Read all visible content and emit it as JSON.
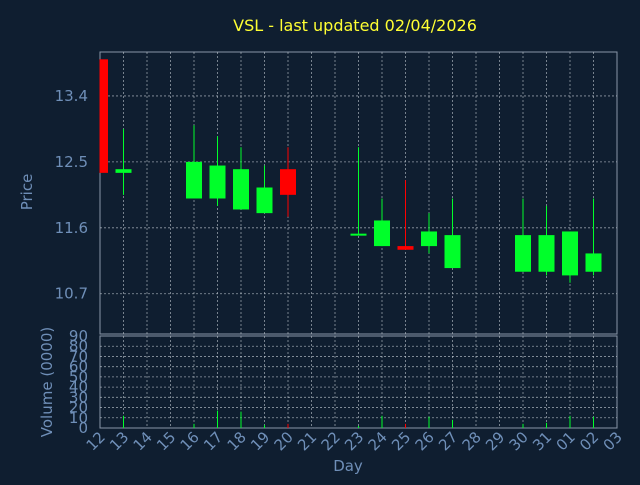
{
  "chart_data": {
    "type": "candlestick",
    "title": "VSL - last updated 02/04/2026",
    "xlabel": "Day",
    "price_panel": {
      "ylabel": "Price",
      "ylim": [
        10.15,
        14.0
      ],
      "y_ticks": [
        10.7,
        11.6,
        12.5,
        13.4
      ]
    },
    "volume_panel": {
      "ylabel": "Volume (0000)",
      "ylim": [
        0,
        90
      ],
      "y_ticks": [
        0,
        10,
        20,
        30,
        40,
        50,
        60,
        70,
        80,
        90
      ]
    },
    "x_tick_labels": [
      "12",
      "13",
      "14",
      "15",
      "16",
      "17",
      "18",
      "19",
      "20",
      "21",
      "22",
      "23",
      "24",
      "25",
      "26",
      "27",
      "28",
      "29",
      "30",
      "31",
      "01",
      "02",
      "03"
    ],
    "candles": [
      {
        "day": "12",
        "open": 13.9,
        "close": 12.35,
        "high": 13.9,
        "low": 12.35,
        "volume": 0
      },
      {
        "day": "13",
        "open": 12.35,
        "close": 12.4,
        "high": 12.95,
        "low": 12.05,
        "volume": 12
      },
      {
        "day": "16",
        "open": 12.0,
        "close": 12.5,
        "high": 13.0,
        "low": 12.0,
        "volume": 4
      },
      {
        "day": "17",
        "open": 12.0,
        "close": 12.45,
        "high": 12.85,
        "low": 11.9,
        "volume": 17
      },
      {
        "day": "18",
        "open": 11.85,
        "close": 12.4,
        "high": 12.7,
        "low": 11.85,
        "volume": 16
      },
      {
        "day": "19",
        "open": 11.8,
        "close": 12.15,
        "high": 12.45,
        "low": 11.8,
        "volume": 3
      },
      {
        "day": "20",
        "open": 12.4,
        "close": 12.05,
        "high": 12.7,
        "low": 11.75,
        "volume": 4
      },
      {
        "day": "23",
        "open": 11.5,
        "close": 11.52,
        "high": 12.7,
        "low": 11.5,
        "volume": 2
      },
      {
        "day": "24",
        "open": 11.35,
        "close": 11.7,
        "high": 12.0,
        "low": 11.35,
        "volume": 12
      },
      {
        "day": "25",
        "open": 11.35,
        "close": 11.3,
        "high": 12.25,
        "low": 11.3,
        "volume": 4
      },
      {
        "day": "26",
        "open": 11.35,
        "close": 11.55,
        "high": 11.8,
        "low": 11.25,
        "volume": 11
      },
      {
        "day": "27",
        "open": 11.05,
        "close": 11.5,
        "high": 12.0,
        "low": 11.05,
        "volume": 8
      },
      {
        "day": "30",
        "open": 11.0,
        "close": 11.5,
        "high": 12.0,
        "low": 11.0,
        "volume": 4
      },
      {
        "day": "31",
        "open": 11.0,
        "close": 11.5,
        "high": 11.9,
        "low": 10.95,
        "volume": 5
      },
      {
        "day": "01",
        "open": 10.95,
        "close": 11.55,
        "high": 11.55,
        "low": 10.85,
        "volume": 12
      },
      {
        "day": "02",
        "open": 11.0,
        "close": 11.25,
        "high": 12.0,
        "low": 10.95,
        "volume": 11
      }
    ],
    "grid": true,
    "colors": {
      "background": "#0f1e30",
      "title": "#ffff33",
      "axis_text": "#6f8fb8",
      "up": "#00ff2a",
      "down": "#ff0000",
      "grid": "#c8d0d8",
      "frame": "#8a96a8"
    }
  }
}
